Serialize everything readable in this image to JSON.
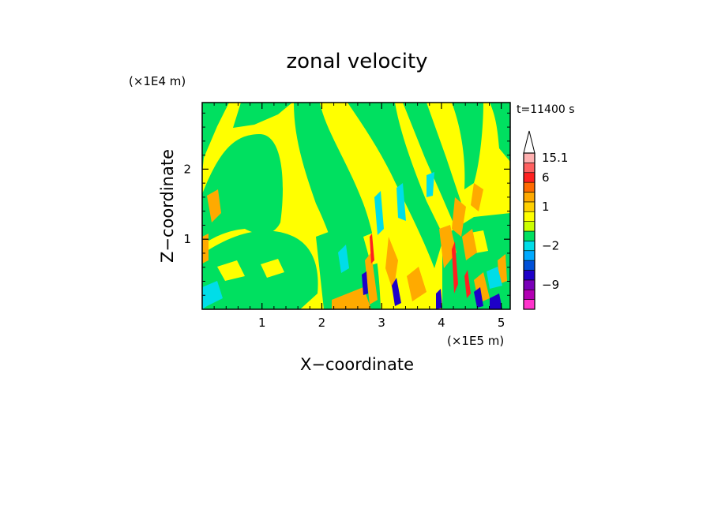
{
  "chart_data": {
    "type": "heatmap",
    "title": "zonal velocity",
    "time_label": "t=11400 s",
    "xlabel": "X−coordinate",
    "ylabel": "Z−coordinate",
    "x_unit": "(×1E5 m)",
    "y_unit": "(×1E4 m)",
    "xlim": [
      0,
      5.15
    ],
    "ylim": [
      0,
      2.95
    ],
    "x_ticks": [
      {
        "value": 1,
        "label": "1"
      },
      {
        "value": 2,
        "label": "2"
      },
      {
        "value": 3,
        "label": "3"
      },
      {
        "value": 4,
        "label": "4"
      },
      {
        "value": 5,
        "label": "5"
      }
    ],
    "y_ticks": [
      {
        "value": 1,
        "label": "1"
      },
      {
        "value": 2,
        "label": "2"
      }
    ],
    "colorbar": {
      "levels": [
        "#ff33cc",
        "#b300b3",
        "#7a00b8",
        "#1e00c8",
        "#0050d8",
        "#00aaff",
        "#00dde8",
        "#00e060",
        "#ccff00",
        "#ffff00",
        "#ffd000",
        "#ffaa00",
        "#ff6a00",
        "#ff2020",
        "#ff6060",
        "#ffb0b0"
      ],
      "labels": [
        {
          "level": 15,
          "text": "15.1"
        },
        {
          "level": 13,
          "text": "6"
        },
        {
          "level": 10,
          "text": "1"
        },
        {
          "level": 6,
          "text": "−2"
        },
        {
          "level": 2,
          "text": "−9"
        }
      ],
      "extend": "max"
    },
    "colors": {
      "background_yellow": "#ffff00",
      "green": "#00e060",
      "orange": "#ffaa00",
      "cyan": "#00dde8",
      "blue": "#1e00c8"
    }
  }
}
